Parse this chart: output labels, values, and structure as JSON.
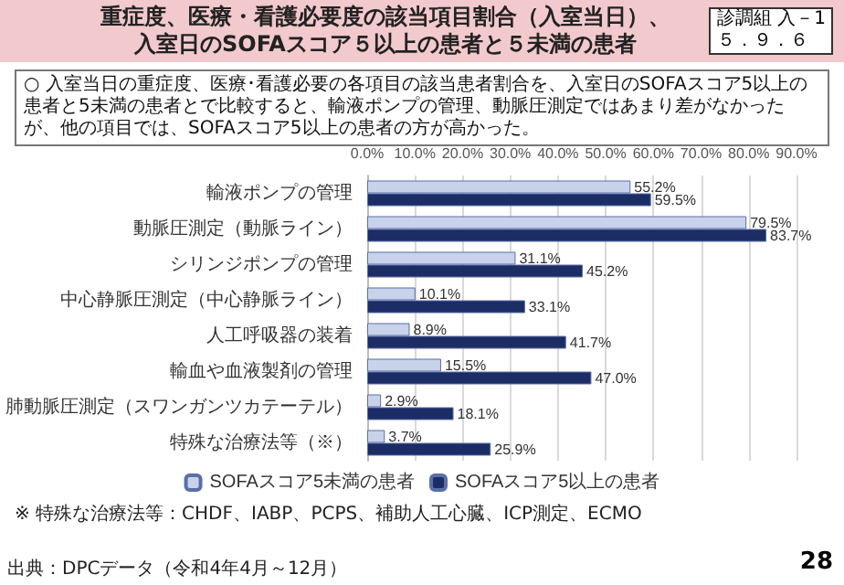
{
  "chart_data": {
    "type": "bar",
    "orientation": "horizontal",
    "title": "重症度、医療・看護必要度の該当項目割合（入室当日）、入室日のSOFAスコア５以上の患者と５未満の患者",
    "subtitle": "○ 入室当日の重症度、医療･看護必要の各項目の該当患者割合を、入室日のSOFAスコア5以上の患者と5未満の患者とで比較すると、輸液ポンプの管理、動脈圧測定ではあまり差がなかったが、他の項目では、SOFAスコア5以上の患者の方が高かった。",
    "annotations": [
      "診調組 入－1\n５．９．６",
      "※ 特殊な治療法等：CHDF、IABP、PCPS、補助人工心臓、ICP測定、ECMO",
      "出典：DPCデータ（令和4年4月～12月）",
      "28"
    ],
    "categories": [
      "輸液ポンプの管理",
      "動脈圧測定（動脈ライン）",
      "シリンジポンプの管理",
      "中心静脈圧測定（中心静脈ライン）",
      "人工呼吸器の装着",
      "輸血や血液製剤の管理",
      "肺動脈圧測定（スワンガンツカテーテル）",
      "特殊な治療法等（※）"
    ],
    "series": [
      {
        "name": "SOFAスコア5未満の患者",
        "color": "#c8d2ea",
        "values": [
          55.2,
          79.5,
          31.1,
          10.1,
          8.9,
          15.5,
          2.9,
          3.7
        ],
        "value_labels": [
          "55.2%",
          "79.5%",
          "31.1%",
          "10.1%",
          "8.9%",
          "15.5%",
          "2.9%",
          "3.7%"
        ]
      },
      {
        "name": "SOFAスコア5以上の患者",
        "color": "#1c2c64",
        "values": [
          59.5,
          83.7,
          45.2,
          33.1,
          41.7,
          47.0,
          18.1,
          25.9
        ],
        "value_labels": [
          "59.5%",
          "83.7%",
          "45.2%",
          "33.1%",
          "41.7%",
          "47.0%",
          "18.1%",
          "25.9%"
        ]
      }
    ],
    "xlim": [
      0,
      90
    ],
    "xticks": [
      {
        "value": 0,
        "label": "0.0%"
      },
      {
        "value": 10,
        "label": "10.0%"
      },
      {
        "value": 20,
        "label": "20.0%"
      },
      {
        "value": 30,
        "label": "30.0%"
      },
      {
        "value": 40,
        "label": "40.0%"
      },
      {
        "value": 50,
        "label": "50.0%"
      },
      {
        "value": 60,
        "label": "60.0%"
      },
      {
        "value": 70,
        "label": "70.0%"
      },
      {
        "value": 80,
        "label": "80.0%"
      },
      {
        "value": 90,
        "label": "90.0%"
      }
    ],
    "grid": "x",
    "legend": "bottom"
  }
}
